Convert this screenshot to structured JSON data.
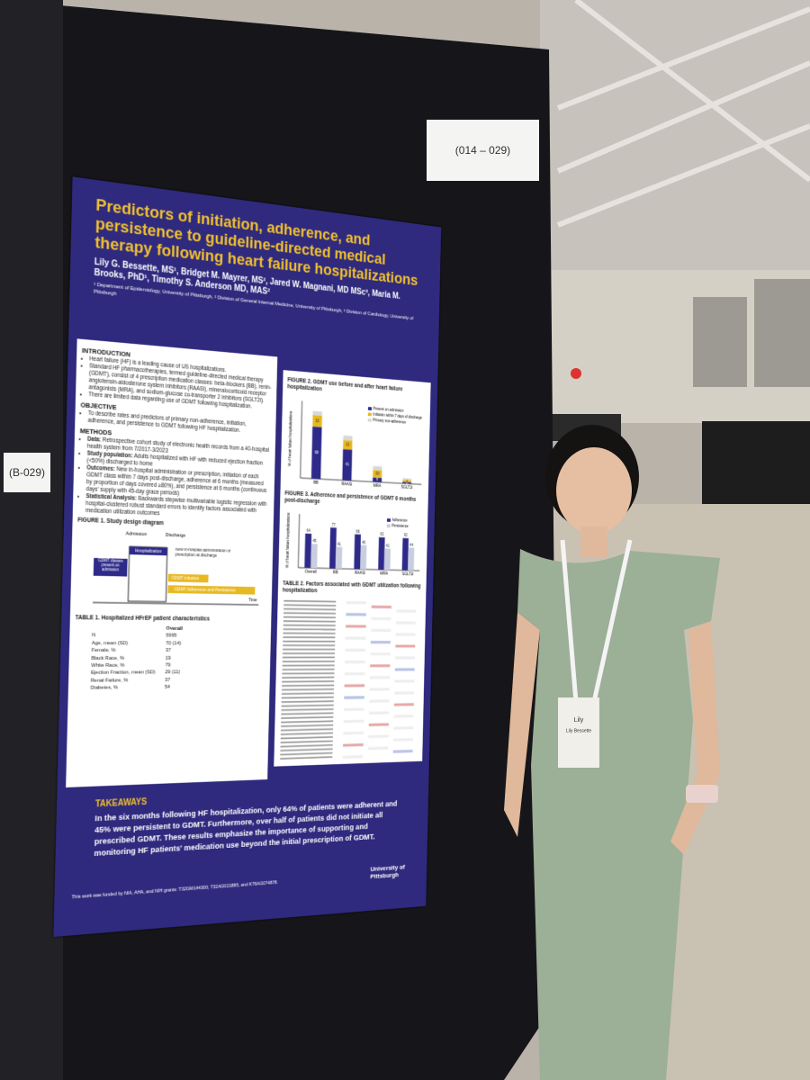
{
  "board_labels": {
    "range": "(014 – 029)",
    "board": "(B-029)"
  },
  "poster": {
    "title": "Predictors of initiation, adherence, and persistence to guideline-directed medical therapy following heart failure hospitalizations",
    "authors": "Lily G. Bessette, MS¹, Bridget M. Mayrer, MS², Jared W. Magnani, MD MSc³, Maria M. Brooks, PhD¹, Timothy S. Anderson MD, MAS²",
    "affiliations": "¹ Department of Epidemiology, University of Pittsburgh, ² Division of General Internal Medicine, University of Pittsburgh, ³ Division of Cardiology, University of Pittsburgh",
    "introduction": {
      "heading": "INTRODUCTION",
      "items": [
        "Heart failure (HF) is a leading cause of US hospitalizations.",
        "Standard HF pharmacotherapies, termed guideline-directed medical therapy (GDMT), consist of 4 prescription medication classes: beta-blockers (BB), renin-angiotensin-aldosterone system inhibitors (RAASi), mineralocorticoid receptor antagonists (MRA), and sodium-glucose co-transporter 2 inhibitors (SGLT2i).",
        "There are limited data regarding use of GDMT following hospitalization."
      ]
    },
    "objective": {
      "heading": "OBJECTIVE",
      "items": [
        "To describe rates and predictors of primary non-adherence, initiation, adherence, and persistence to GDMT following HF hospitalization."
      ]
    },
    "methods": {
      "heading": "METHODS",
      "items": [
        {
          "label": "Data:",
          "text": "Retrospective cohort study of electronic health records from a 40-hospital health system from 7/2017-3/2023"
        },
        {
          "label": "Study population:",
          "text": "Adults hospitalized with HF with reduced ejection fraction (<50%) discharged to home"
        },
        {
          "label": "Outcomes:",
          "text": "New in-hospital administration or prescription, initiation of each GDMT class within 7 days post-discharge, adherence at 6 months (measured by proportion of days covered ≥80%), and persistence at 6 months (continuous days' supply with 45-day grace periods)"
        },
        {
          "label": "Statistical Analysis:",
          "text": "Backwards stepwise multivariable logistic regression with hospital-clustered robust standard errors to identify factors associated with medication utilization outcomes"
        }
      ]
    },
    "figure1": {
      "title": "FIGURE 1. Study design diagram",
      "admission": "Admission",
      "discharge": "Discharge",
      "hospitalization": "Hospitalization",
      "present": "GDMT classes present on admission",
      "new": "New in-hospital administration or prescription at discharge",
      "initiation": "GDMT initiation",
      "adherence": "GDMT Adherence and Persistence",
      "time": "Time"
    },
    "table1": {
      "title": "TABLE 1. Hospitalized HFrEF patient characteristics",
      "header": "Overall",
      "rows": [
        [
          "N",
          "5995"
        ],
        [
          "Age, mean (SD)",
          "70 (14)"
        ],
        [
          "Female, %",
          "37"
        ],
        [
          "Black Race, %",
          "19"
        ],
        [
          "White Race, %",
          "79"
        ],
        [
          "Ejection Fraction, mean (SD)",
          "29 (11)"
        ],
        [
          "Renal Failure, %",
          "37"
        ],
        [
          "Diabetes, %",
          "54"
        ]
      ]
    },
    "figure2": {
      "type": "bar",
      "title": "FIGURE 2. GDMT use before and after heart failure hospitalization",
      "ylabel": "% of heart failure hospitalizations",
      "ylim": [
        0,
        100
      ],
      "categories": [
        "BB",
        "RAASi",
        "MRA",
        "SGLT2i"
      ],
      "series": [
        {
          "name": "Present on admission",
          "color": "#2e2a8a",
          "values": [
            68,
            41,
            6,
            2
          ]
        },
        {
          "name": "Initiation within 7 days of discharge",
          "color": "#e8b923",
          "values": [
            15,
            12,
            10,
            3
          ]
        },
        {
          "name": "Primary non-adherence",
          "color": "#d8d8d8",
          "values": [
            5,
            6,
            5,
            2
          ]
        }
      ]
    },
    "figure3": {
      "type": "bar",
      "title": "FIGURE 3. Adherence and persistence of GDMT 6 months post-discharge",
      "ylabel": "% of heart failure hospitalizations",
      "ylim": [
        0,
        100
      ],
      "categories": [
        "Overall",
        "BB",
        "RAASi",
        "MRA",
        "SGLT2i"
      ],
      "series": [
        {
          "name": "Adherence",
          "color": "#2e2a8a",
          "values": [
            64,
            77,
            66,
            62,
            62
          ]
        },
        {
          "name": "Persistence",
          "color": "#c9cde0",
          "values": [
            45,
            41,
            46,
            41,
            44
          ]
        }
      ]
    },
    "table2": {
      "title": "TABLE 2. Factors associated with GDMT utilization following hospitalization"
    },
    "takeaways": {
      "heading": "TAKEAWAYS",
      "text": "In the six months following HF hospitalization, only 64% of patients were adherent and 45% were persistent to GDMT. Furthermore, over half of patients did not initiate all prescribed GDMT. These results emphasize the importance of supporting and monitoring HF patients' medication use beyond the initial prescription of GDMT."
    },
    "logo": "University of Pittsburgh",
    "funding": "This work was funded by NIA, AHA, and NIH grants: T32GM144300, T32AG021885, and K76AG074878."
  },
  "badge": {
    "name": "Lily",
    "full_name": "Lily Bessette"
  }
}
